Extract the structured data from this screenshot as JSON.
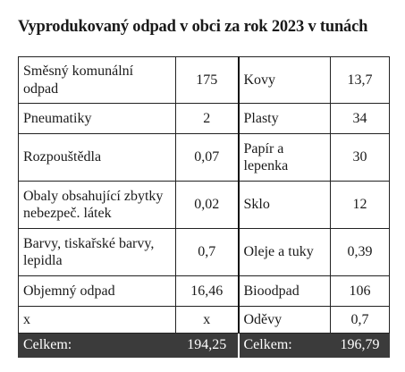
{
  "title": "Vyprodukovaný odpad v obci za rok 2023 v tunách",
  "rows": [
    {
      "left_name": "Směsný komunální odpad",
      "left_value": "175",
      "right_name": "Kovy",
      "right_value": "13,7"
    },
    {
      "left_name": "Pneumatiky",
      "left_value": "2",
      "right_name": "Plasty",
      "right_value": "34"
    },
    {
      "left_name": "Rozpouštědla",
      "left_value": "0,07",
      "right_name": "Papír a lepenka",
      "right_value": "30"
    },
    {
      "left_name": "Obaly obsahující zbytky nebezpeč. látek",
      "left_value": "0,02",
      "right_name": "Sklo",
      "right_value": "12"
    },
    {
      "left_name": "Barvy, tiskařské barvy, lepidla",
      "left_value": "0,7",
      "right_name": "Oleje a tuky",
      "right_value": "0,39"
    },
    {
      "left_name": "Objemný odpad",
      "left_value": "16,46",
      "right_name": "Bioodpad",
      "right_value": "106"
    },
    {
      "left_name": "x",
      "left_value": "x",
      "right_name": "Oděvy",
      "right_value": "0,7"
    }
  ],
  "total": {
    "left_label": "Celkem:",
    "left_value": "194,25",
    "right_label": "Celkem:",
    "right_value": "196,79"
  },
  "colors": {
    "total_row_background": "#3b3b3b",
    "total_row_text": "#ffffff",
    "grid_lines": "#222222"
  }
}
